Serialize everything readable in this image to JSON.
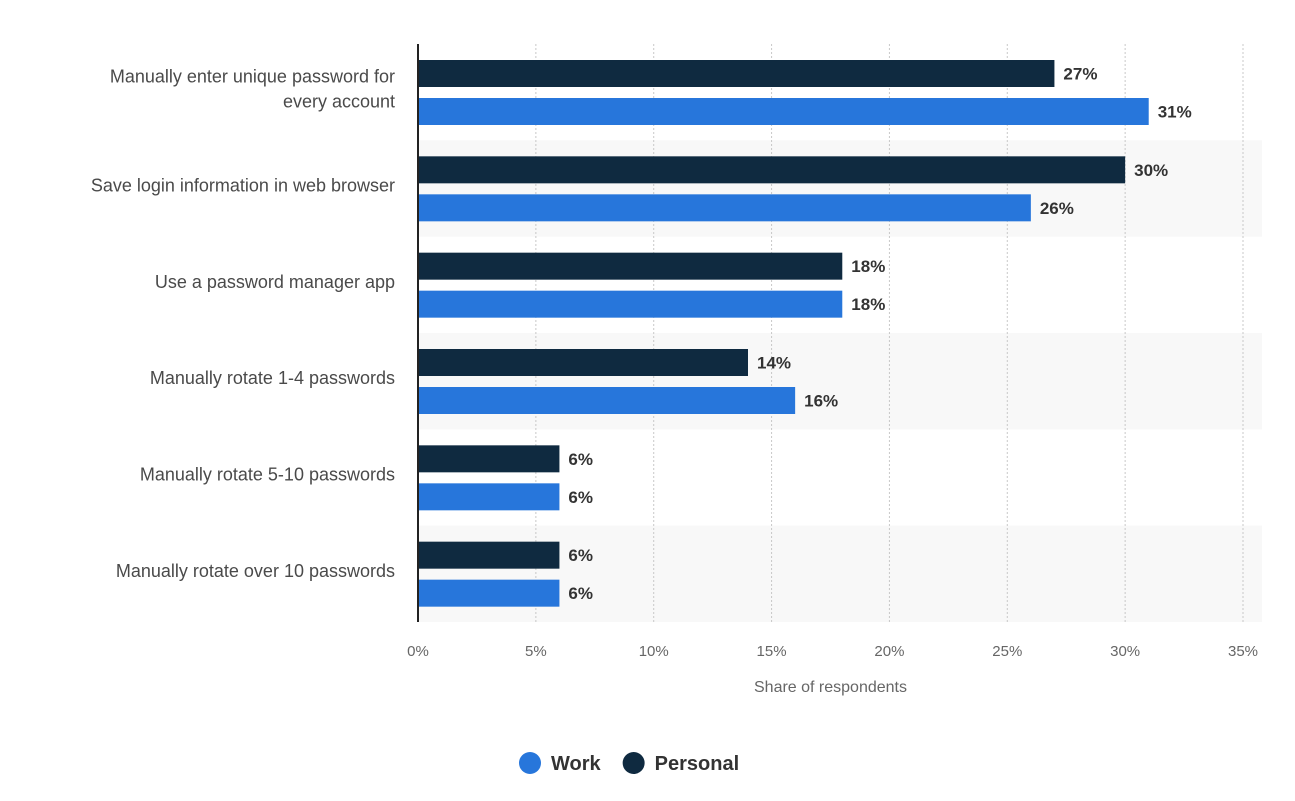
{
  "chart_data": {
    "type": "bar",
    "orientation": "horizontal",
    "categories": [
      [
        "Manually enter unique password for",
        "every account"
      ],
      [
        "Save login information in web browser"
      ],
      [
        "Use a password manager app"
      ],
      [
        "Manually rotate 1-4 passwords"
      ],
      [
        "Manually rotate 5-10 passwords"
      ],
      [
        "Manually rotate over 10 passwords"
      ]
    ],
    "series": [
      {
        "name": "Personal",
        "color": "#0f2a40",
        "values": [
          27,
          30,
          18,
          14,
          6,
          6
        ]
      },
      {
        "name": "Work",
        "color": "#2776db",
        "values": [
          31,
          26,
          18,
          16,
          6,
          6
        ]
      }
    ],
    "value_suffix": "%",
    "xlabel": "Share of respondents",
    "xlim": [
      0,
      35
    ],
    "xticks": [
      "0%",
      "5%",
      "10%",
      "15%",
      "20%",
      "25%",
      "30%",
      "35%"
    ],
    "grid": true,
    "legend": {
      "placement": "bottom",
      "order": [
        "Work",
        "Personal"
      ]
    }
  }
}
